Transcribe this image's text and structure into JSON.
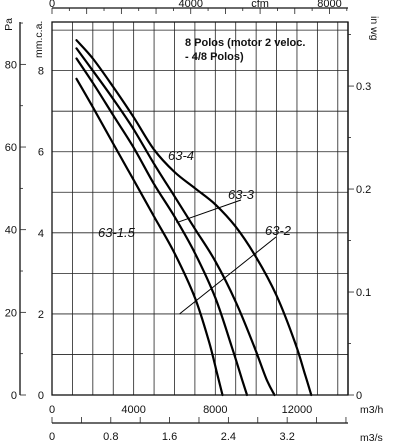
{
  "chart_data": {
    "type": "line",
    "title": "",
    "note_lines": [
      "8 Polos (motor 2 veloc.",
      "- 4/8 Polos)"
    ],
    "x_units_bottom_1": "m3/h",
    "x_units_bottom_2": "m3/s",
    "x_units_top": "cfm",
    "y_units_left_outer": "Pa",
    "y_units_left_inner": "mm.c.a.",
    "y_units_right": "in wg",
    "xlim_m3h": [
      0,
      14500
    ],
    "ylim_mmca": [
      0,
      9.2
    ],
    "grid": true,
    "x_ticks_m3h": [
      "0",
      "4000",
      "8000",
      "12000"
    ],
    "x_ticks_m3s": [
      "0",
      "0.8",
      "1.6",
      "2.4",
      "3.2"
    ],
    "x_ticks_cfm": [
      "0",
      "4000",
      "cfm",
      "8000"
    ],
    "y_ticks_mmca": [
      "0",
      "2",
      "4",
      "6",
      "8"
    ],
    "y_ticks_pa": [
      "0",
      "20",
      "40",
      "60",
      "80"
    ],
    "y_ticks_inwg": [
      "0",
      "0.1",
      "0.2",
      "0.3"
    ],
    "series": [
      {
        "name": "63-1.5",
        "points": [
          [
            1200,
            7.8
          ],
          [
            2000,
            7.1
          ],
          [
            3000,
            6.2
          ],
          [
            4000,
            5.3
          ],
          [
            5000,
            4.4
          ],
          [
            6000,
            3.5
          ],
          [
            7000,
            2.4
          ],
          [
            7700,
            1.3
          ],
          [
            8100,
            0.5
          ],
          [
            8350,
            0
          ]
        ]
      },
      {
        "name": "63-2",
        "points": [
          [
            1200,
            8.3
          ],
          [
            2000,
            7.7
          ],
          [
            3000,
            6.9
          ],
          [
            4000,
            6.1
          ],
          [
            5000,
            5.2
          ],
          [
            6000,
            4.4
          ],
          [
            7000,
            3.5
          ],
          [
            8000,
            2.4
          ],
          [
            8800,
            1.2
          ],
          [
            9300,
            0.4
          ],
          [
            9550,
            0
          ]
        ]
      },
      {
        "name": "63-3",
        "points": [
          [
            1200,
            8.55
          ],
          [
            2000,
            8.0
          ],
          [
            3000,
            7.3
          ],
          [
            4000,
            6.55
          ],
          [
            5000,
            5.7
          ],
          [
            6000,
            4.9
          ],
          [
            7000,
            4.1
          ],
          [
            8000,
            3.3
          ],
          [
            9000,
            2.3
          ],
          [
            9900,
            1.2
          ],
          [
            10500,
            0.4
          ],
          [
            10900,
            0
          ]
        ]
      },
      {
        "name": "63-4",
        "points": [
          [
            1200,
            8.75
          ],
          [
            2000,
            8.3
          ],
          [
            3000,
            7.6
          ],
          [
            4000,
            6.85
          ],
          [
            5000,
            6.05
          ],
          [
            6000,
            5.5
          ],
          [
            7000,
            5.1
          ],
          [
            8000,
            4.7
          ],
          [
            9000,
            4.15
          ],
          [
            10000,
            3.4
          ],
          [
            11000,
            2.45
          ],
          [
            11900,
            1.3
          ],
          [
            12400,
            0.5
          ],
          [
            12700,
            0
          ]
        ]
      }
    ]
  }
}
